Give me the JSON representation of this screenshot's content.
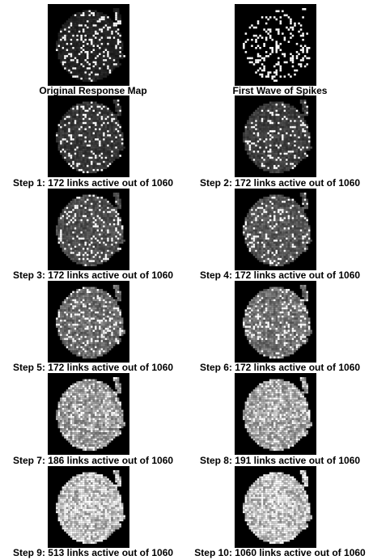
{
  "panels": [
    {
      "caption": "Original Response Map",
      "level": 0.18,
      "wave": false
    },
    {
      "caption": "First Wave of Spikes",
      "level": 0.05,
      "wave": true
    },
    {
      "caption": "Step 1: 172 links active out of 1060",
      "level": 0.28,
      "wave": false
    },
    {
      "caption": "Step 2: 172 links active out of 1060",
      "level": 0.32,
      "wave": false
    },
    {
      "caption": "Step 3: 172 links active out of 1060",
      "level": 0.4,
      "wave": false
    },
    {
      "caption": "Step 4: 172 links active out of 1060",
      "level": 0.44,
      "wave": false
    },
    {
      "caption": "Step 5: 172 links active out of 1060",
      "level": 0.55,
      "wave": false
    },
    {
      "caption": "Step 6: 172 links active out of 1060",
      "level": 0.58,
      "wave": false
    },
    {
      "caption": "Step 7: 186 links active out of 1060",
      "level": 0.78,
      "wave": false
    },
    {
      "caption": "Step 8: 191 links active out of 1060",
      "level": 0.84,
      "wave": false
    },
    {
      "caption": "Step 9: 513 links active out of 1060",
      "level": 0.97,
      "wave": false
    },
    {
      "caption": "Step 10: 1060 links active out of 1060",
      "level": 1.0,
      "wave": false
    }
  ],
  "colors": {
    "background": "#000000",
    "spike": "#ffffff",
    "caption": "#000000"
  }
}
